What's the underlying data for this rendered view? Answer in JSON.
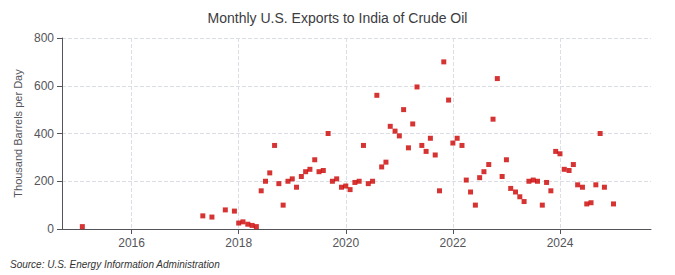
{
  "chart_data": {
    "type": "scatter",
    "title": "Monthly U.S. Exports to India of Crude Oil",
    "ylabel": "Thousand Barrels per Day",
    "annotation": "Source: U.S. Energy Information Administration",
    "color": "#cc0000",
    "marker": "square",
    "grid": true,
    "xlim": [
      2014.7,
      2025.7
    ],
    "xticks": [
      2016,
      2018,
      2020,
      2022,
      2024
    ],
    "ylim": [
      0,
      800
    ],
    "yticks": [
      0,
      200,
      400,
      600,
      800
    ],
    "x": [
      2015.08,
      2017.33,
      2017.5,
      2017.75,
      2017.92,
      2018.0,
      2018.08,
      2018.17,
      2018.25,
      2018.33,
      2018.42,
      2018.5,
      2018.58,
      2018.67,
      2018.75,
      2018.83,
      2018.92,
      2019.0,
      2019.08,
      2019.17,
      2019.25,
      2019.33,
      2019.42,
      2019.5,
      2019.58,
      2019.67,
      2019.75,
      2019.83,
      2019.92,
      2020.0,
      2020.08,
      2020.17,
      2020.25,
      2020.33,
      2020.42,
      2020.5,
      2020.58,
      2020.67,
      2020.75,
      2020.83,
      2020.92,
      2021.0,
      2021.08,
      2021.17,
      2021.25,
      2021.33,
      2021.42,
      2021.5,
      2021.58,
      2021.67,
      2021.75,
      2021.83,
      2021.92,
      2022.0,
      2022.08,
      2022.17,
      2022.25,
      2022.33,
      2022.42,
      2022.5,
      2022.58,
      2022.67,
      2022.75,
      2022.83,
      2022.92,
      2023.0,
      2023.08,
      2023.17,
      2023.25,
      2023.33,
      2023.42,
      2023.5,
      2023.58,
      2023.67,
      2023.75,
      2023.83,
      2023.92,
      2024.0,
      2024.08,
      2024.17,
      2024.25,
      2024.33,
      2024.42,
      2024.5,
      2024.58,
      2024.67,
      2024.75,
      2024.83,
      2025.0
    ],
    "values": [
      10,
      55,
      50,
      80,
      75,
      25,
      30,
      20,
      15,
      10,
      160,
      200,
      235,
      350,
      190,
      100,
      200,
      210,
      175,
      220,
      240,
      250,
      290,
      240,
      245,
      400,
      200,
      210,
      175,
      180,
      165,
      195,
      200,
      350,
      190,
      200,
      560,
      260,
      280,
      430,
      410,
      390,
      500,
      340,
      440,
      595,
      350,
      325,
      380,
      310,
      160,
      700,
      540,
      360,
      380,
      350,
      205,
      155,
      100,
      215,
      240,
      270,
      460,
      630,
      220,
      290,
      170,
      155,
      135,
      115,
      200,
      205,
      200,
      100,
      195,
      160,
      325,
      315,
      250,
      245,
      270,
      185,
      175,
      105,
      110,
      185,
      400,
      175,
      105
    ]
  }
}
